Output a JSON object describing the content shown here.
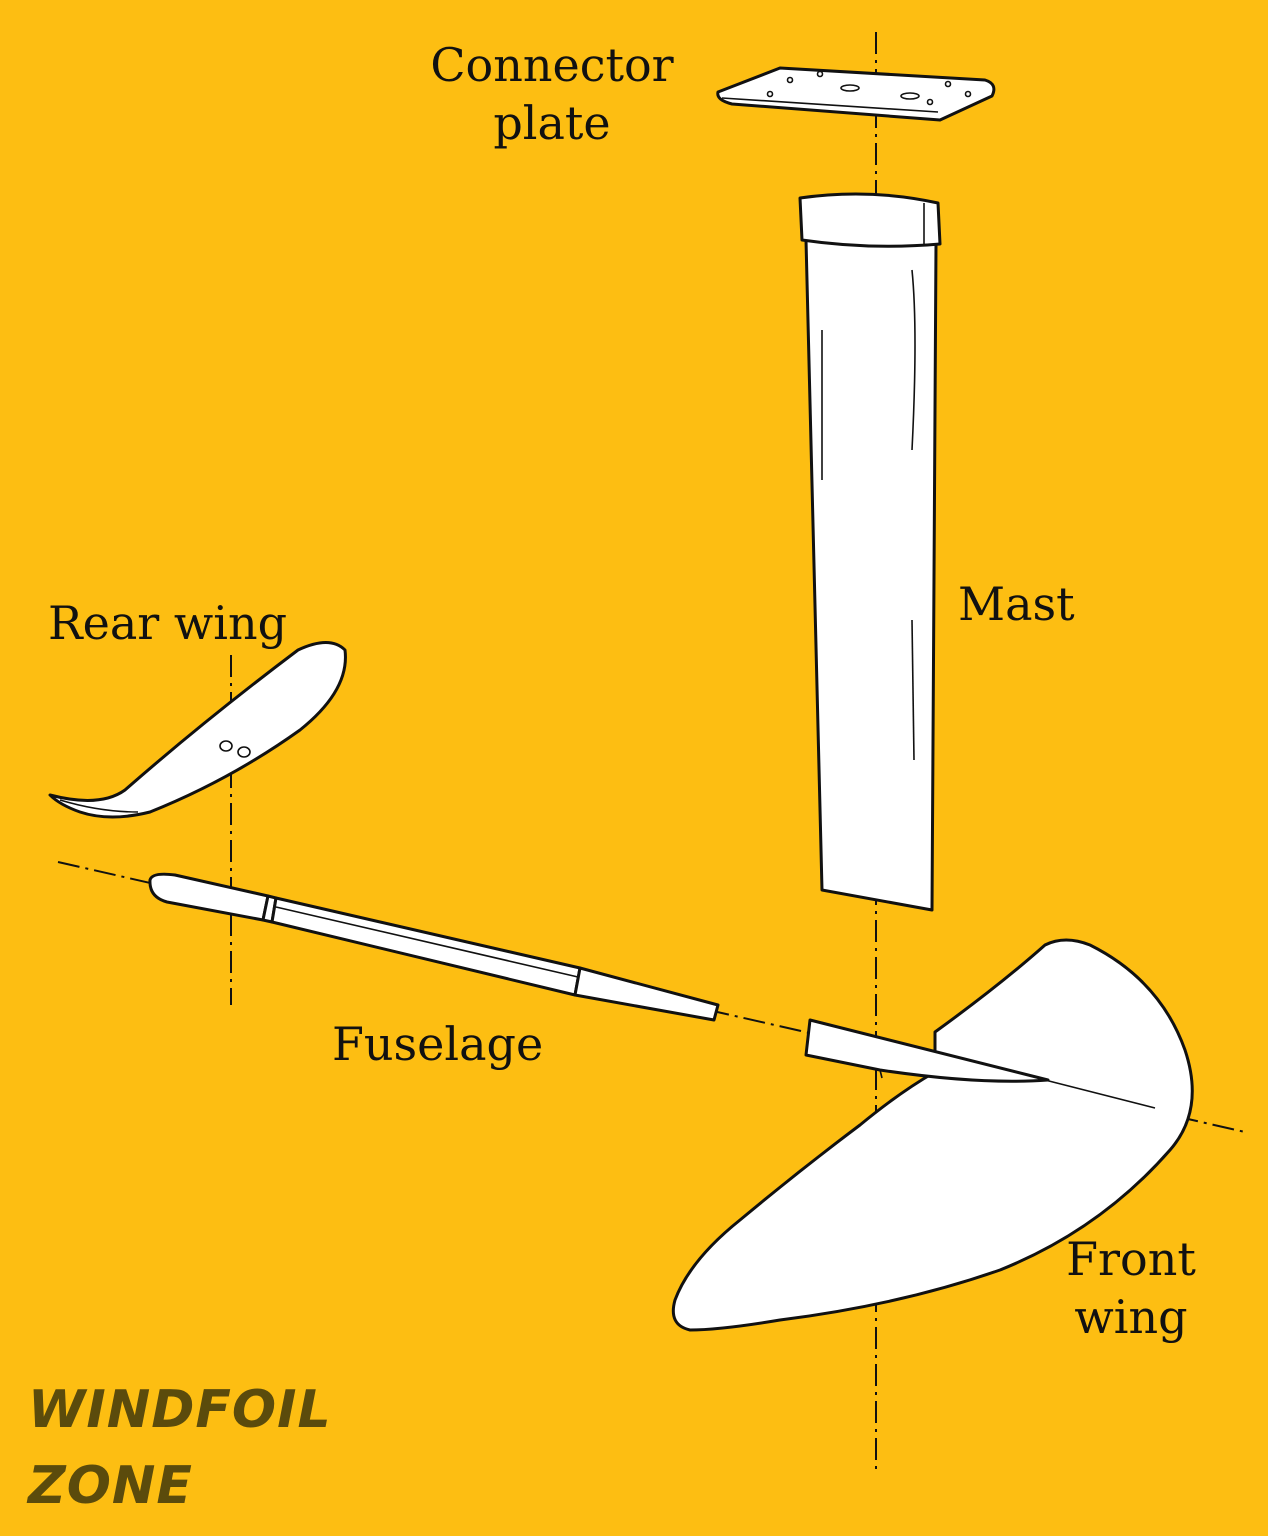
{
  "labels": {
    "connector_plate": [
      "Connector",
      "plate"
    ],
    "mast": "Mast",
    "rear_wing": "Rear wing",
    "fuselage": "Fuselage",
    "front_wing": [
      "Front",
      "wing"
    ]
  },
  "brand": {
    "line1": "WINDFOIL",
    "line2": "ZONE"
  },
  "colors": {
    "background": "#FDBE12",
    "line": "#111111",
    "part_fill": "#FFFFFF",
    "brand": "#5B4B0C"
  }
}
